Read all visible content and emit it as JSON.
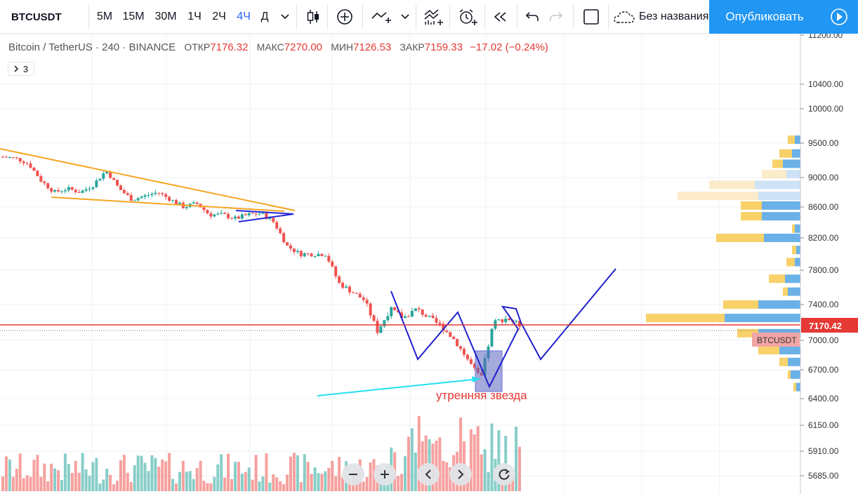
{
  "toolbar": {
    "symbol": "BTCUSDT",
    "intervals": [
      "5M",
      "15M",
      "30M",
      "1Ч",
      "2Ч",
      "4Ч",
      "Д"
    ],
    "active_interval": "4Ч",
    "layout_name": "Без названия",
    "publish_label": "Опубликовать"
  },
  "legend": {
    "title": "Bitcoin / TetherUS · 240 · BINANCE",
    "open_label": "ОТКР",
    "open": "7176.32",
    "high_label": "МАКС",
    "high": "7270.00",
    "low_label": "МИН",
    "low": "7126.53",
    "close_label": "ЗАКР",
    "close": "7159.33",
    "change": "−17.02 (−0.24%)",
    "indicators_count": "3"
  },
  "price_axis": {
    "ticks": [
      "11200.00",
      "10400.00",
      "10000.00",
      "9500.00",
      "9000.00",
      "8600.00",
      "8200.00",
      "7800.00",
      "7400.00",
      "7000.00",
      "6700.00",
      "6400.00",
      "6150.00",
      "5910.00",
      "5685.00"
    ],
    "current_price": "7170.42",
    "symbol_tag": "BTCUSDT"
  },
  "annotation": {
    "text": "утренняя звезда"
  },
  "colors": {
    "up": "#26a69a",
    "down": "#ef5350",
    "accent": "#2196f3",
    "price_line": "#e53935"
  },
  "chart_data": {
    "type": "candlestick",
    "symbol": "BTCUSDT",
    "exchange": "BINANCE",
    "timeframe": "240",
    "last_bar": {
      "open": 7176.32,
      "high": 7270.0,
      "low": 7126.53,
      "close": 7159.33,
      "change": -17.02,
      "change_pct": -0.24
    },
    "current_price": 7170.42,
    "y_ticks": [
      11200,
      10400,
      10000,
      9500,
      9000,
      8600,
      8200,
      7800,
      7400,
      7000,
      6700,
      6400,
      6150,
      5910,
      5685
    ],
    "price_path_approx": [
      9300,
      9280,
      9200,
      8950,
      8800,
      8850,
      8800,
      8900,
      9100,
      8850,
      8700,
      8750,
      8800,
      8700,
      8600,
      8650,
      8500,
      8500,
      8450,
      8500,
      8520,
      8400,
      8100,
      8000,
      8000,
      8000,
      7650,
      7550,
      7450,
      7100,
      7350,
      7250,
      7350,
      7250,
      7150,
      7000,
      6800,
      6600,
      7200,
      7250,
      7170
    ]
  },
  "zoom_controls": [
    "zoom-out",
    "zoom-in",
    "scroll-left",
    "scroll-right",
    "reset"
  ]
}
